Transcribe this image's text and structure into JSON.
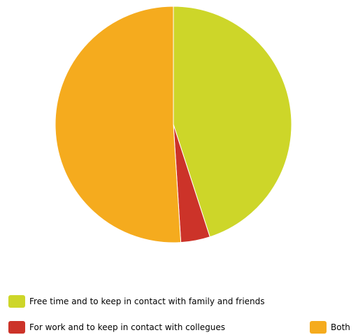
{
  "chart_data": {
    "type": "pie",
    "title": "",
    "slices": [
      {
        "label": "Free time and to keep in contact with family and friends",
        "value": 45,
        "color": "#cdd629"
      },
      {
        "label": "For work and to keep in contact with collegues",
        "value": 4,
        "color": "#cc3329"
      },
      {
        "label": "Both",
        "value": 51,
        "color": "#f5ab1e"
      }
    ],
    "legend_position": "bottom"
  }
}
